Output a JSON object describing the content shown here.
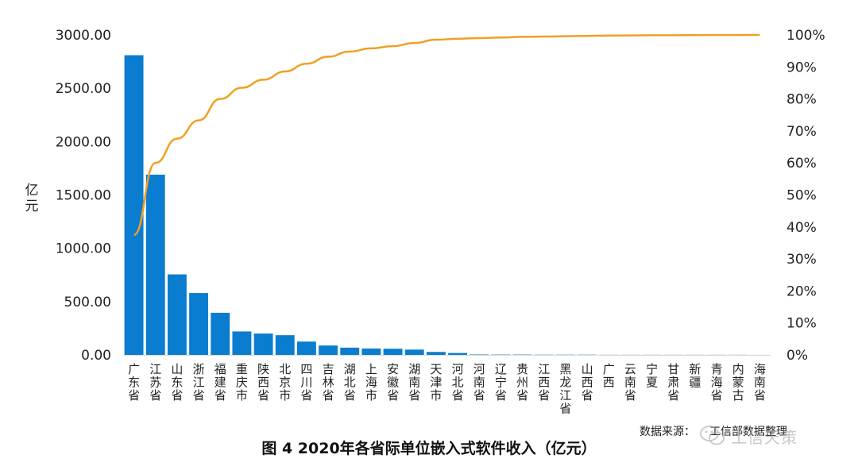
{
  "chart_data": {
    "type": "bar+line",
    "title": "图 4  2020年各省际单位嵌入式软件收入（亿元）",
    "ylabel": "亿元",
    "ylim": [
      0,
      3000
    ],
    "y_ticks": [
      "0.00",
      "500.00",
      "1000.00",
      "1500.00",
      "2000.00",
      "2500.00",
      "3000.00"
    ],
    "y2lim": [
      0,
      100
    ],
    "y2_ticks": [
      "0%",
      "10%",
      "20%",
      "30%",
      "40%",
      "50%",
      "60%",
      "70%",
      "80%",
      "90%",
      "100%"
    ],
    "categories": [
      "广东省",
      "江苏省",
      "山东省",
      "浙江省",
      "福建省",
      "重庆市",
      "陕西省",
      "北京市",
      "四川省",
      "吉林省",
      "湖北省",
      "上海市",
      "安徽省",
      "湖南省",
      "天津市",
      "河北省",
      "河南省",
      "辽宁省",
      "贵州省",
      "江西省",
      "黑龙江省",
      "山西省",
      "广西",
      "云南省",
      "宁夏",
      "甘肃省",
      "新疆",
      "青海省",
      "内蒙古",
      "海南省"
    ],
    "series": [
      {
        "type": "bar",
        "color": "#0a7dd0",
        "values": [
          2810,
          1690,
          755,
          580,
          395,
          220,
          200,
          185,
          125,
          88,
          68,
          60,
          58,
          50,
          28,
          18,
          4,
          3,
          3,
          2,
          2,
          2,
          1,
          1,
          1,
          1,
          1,
          1,
          1,
          0.5
        ]
      },
      {
        "type": "line",
        "axis": "right",
        "color": "#f0a023",
        "values": [
          37.5,
          60,
          67.6,
          73.3,
          80,
          83.5,
          86,
          88.6,
          91,
          93.2,
          94.8,
          95.8,
          96.5,
          97.5,
          98.5,
          98.8,
          99,
          99.2,
          99.4,
          99.5,
          99.6,
          99.7,
          99.8,
          99.85,
          99.9,
          99.92,
          99.95,
          99.97,
          99.98,
          100
        ]
      }
    ]
  },
  "source_text": "数据来源：",
  "source_text_tail": "工信部数据整理",
  "watermark": "工信天策"
}
